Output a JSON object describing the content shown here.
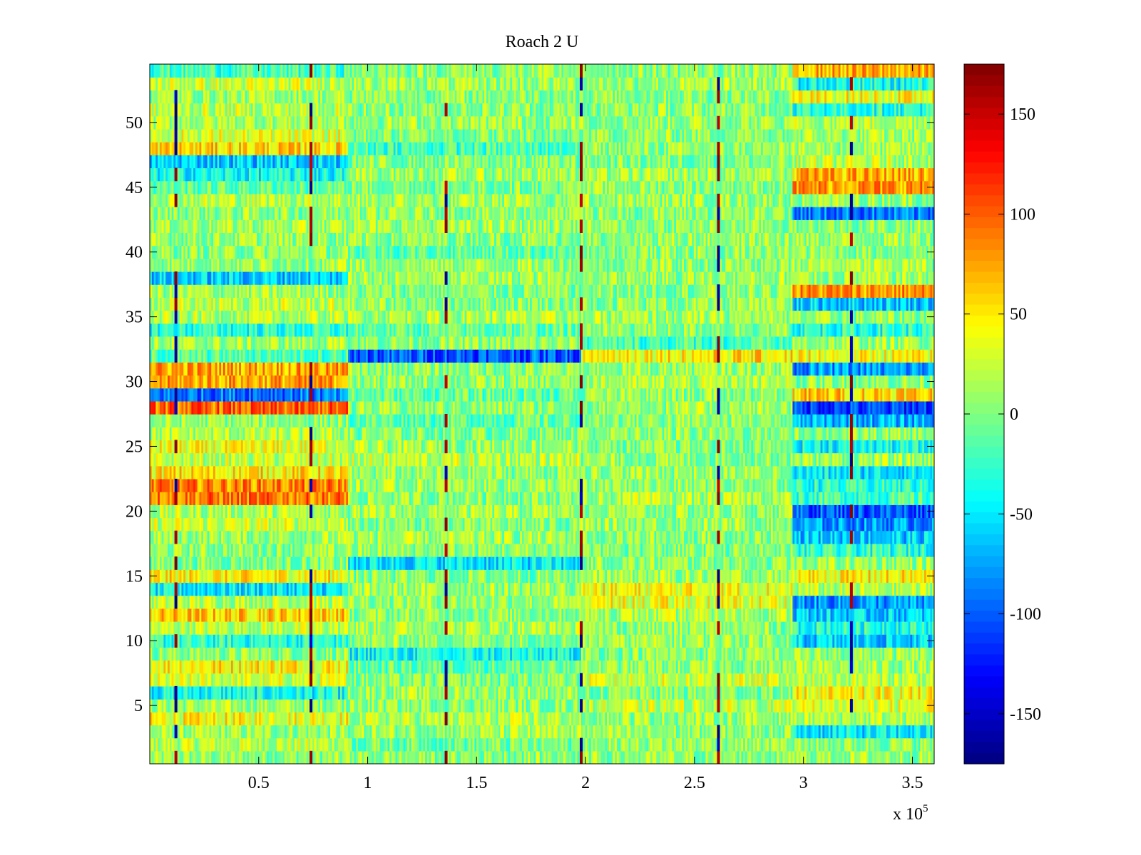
{
  "chart_data": {
    "type": "heatmap",
    "title": "Roach 2 U",
    "xlabel": "",
    "ylabel": "",
    "x_multiplier_label": "x 10",
    "x_multiplier_exponent": "5",
    "xlim": [
      0,
      3.6
    ],
    "ylim": [
      0.5,
      54.5
    ],
    "clim": [
      -175,
      175
    ],
    "colormap": "jet",
    "x_ticks": [
      {
        "value": 0.5,
        "label": "0.5"
      },
      {
        "value": 1,
        "label": "1"
      },
      {
        "value": 1.5,
        "label": "1.5"
      },
      {
        "value": 2,
        "label": "2"
      },
      {
        "value": 2.5,
        "label": "2.5"
      },
      {
        "value": 3,
        "label": "3"
      },
      {
        "value": 3.5,
        "label": "3.5"
      }
    ],
    "y_ticks": [
      {
        "value": 5,
        "label": "5"
      },
      {
        "value": 10,
        "label": "10"
      },
      {
        "value": 15,
        "label": "15"
      },
      {
        "value": 20,
        "label": "20"
      },
      {
        "value": 25,
        "label": "25"
      },
      {
        "value": 30,
        "label": "30"
      },
      {
        "value": 35,
        "label": "35"
      },
      {
        "value": 40,
        "label": "40"
      },
      {
        "value": 45,
        "label": "45"
      },
      {
        "value": 50,
        "label": "50"
      }
    ],
    "colorbar_ticks": [
      {
        "value": 150,
        "label": "150"
      },
      {
        "value": 100,
        "label": "100"
      },
      {
        "value": 50,
        "label": "50"
      },
      {
        "value": 0,
        "label": "0"
      },
      {
        "value": -50,
        "label": "-50"
      },
      {
        "value": -100,
        "label": "-100"
      },
      {
        "value": -150,
        "label": "-150"
      }
    ],
    "rows": 54,
    "segment_breaks": [
      0,
      0.91,
      1.98,
      2.95,
      3.6
    ],
    "segment_row_means": [
      [
        5,
        20,
        8,
        40,
        10,
        -40,
        25,
        50,
        5,
        -30,
        20,
        60,
        20,
        -50,
        45,
        0,
        5,
        10,
        25,
        15,
        90,
        85,
        50,
        20,
        35,
        15,
        5,
        95,
        -90,
        75,
        75,
        -15,
        10,
        -30,
        15,
        20,
        10,
        -60,
        10,
        5,
        8,
        12,
        5,
        20,
        -10,
        -40,
        -60,
        55,
        30,
        15,
        20,
        10,
        25,
        -20
      ],
      [
        5,
        -5,
        10,
        15,
        5,
        10,
        0,
        -10,
        -40,
        5,
        15,
        5,
        10,
        10,
        0,
        -50,
        5,
        10,
        0,
        10,
        5,
        10,
        5,
        20,
        10,
        0,
        -10,
        5,
        -10,
        5,
        5,
        -100,
        5,
        -10,
        15,
        5,
        0,
        10,
        10,
        -10,
        5,
        10,
        5,
        10,
        0,
        10,
        0,
        -20,
        0,
        10,
        5,
        5,
        10,
        5
      ],
      [
        5,
        10,
        5,
        10,
        20,
        0,
        25,
        5,
        5,
        10,
        5,
        15,
        35,
        40,
        10,
        5,
        0,
        5,
        10,
        5,
        15,
        5,
        10,
        5,
        0,
        5,
        5,
        10,
        5,
        15,
        10,
        50,
        -20,
        5,
        10,
        5,
        5,
        10,
        5,
        5,
        10,
        5,
        5,
        10,
        5,
        10,
        0,
        5,
        5,
        10,
        5,
        5,
        10,
        5
      ],
      [
        10,
        5,
        -50,
        15,
        30,
        40,
        20,
        10,
        5,
        -60,
        -30,
        -60,
        -80,
        15,
        45,
        10,
        -30,
        -60,
        -80,
        -100,
        -20,
        -30,
        -50,
        10,
        -40,
        5,
        -70,
        -110,
        60,
        5,
        -80,
        40,
        10,
        -30,
        5,
        -60,
        80,
        10,
        15,
        5,
        10,
        5,
        -90,
        10,
        80,
        70,
        20,
        10,
        10,
        20,
        -30,
        40,
        -40,
        70
      ]
    ],
    "vertical_streak_positions": [
      0.12,
      0.74,
      1.36,
      1.98,
      2.61,
      3.22
    ]
  }
}
